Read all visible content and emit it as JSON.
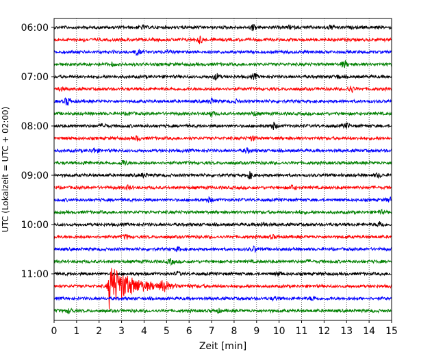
{
  "chart_data": {
    "type": "line",
    "title": "",
    "xlabel": "Zeit  [min]",
    "ylabel": "UTC (Lokalzeit = UTC + 02:00)",
    "xlim": [
      0,
      15
    ],
    "x_ticks": [
      "0",
      "1",
      "2",
      "3",
      "4",
      "5",
      "6",
      "7",
      "8",
      "9",
      "10",
      "11",
      "12",
      "13",
      "14",
      "15"
    ],
    "y_tick_labels": [
      "06:00",
      "07:00",
      "08:00",
      "09:00",
      "10:00",
      "11:00"
    ],
    "grid": "vertical dotted",
    "trace_minutes": 15,
    "trace_colors": [
      "#000000",
      "#ff0000",
      "#0000ff",
      "#008000"
    ],
    "traces": [
      {
        "start": "06:00",
        "color": "#000000",
        "events": [
          {
            "t": 3.9,
            "amp": 0.2
          },
          {
            "t": 8.85,
            "amp": 0.4
          },
          {
            "t": 10.5,
            "amp": 0.2
          },
          {
            "t": 12.3,
            "amp": 0.3
          }
        ]
      },
      {
        "start": "06:15",
        "color": "#ff0000",
        "events": [
          {
            "t": 1.3,
            "amp": 0.15
          },
          {
            "t": 6.5,
            "amp": 0.5
          }
        ]
      },
      {
        "start": "06:30",
        "color": "#0000ff",
        "events": [
          {
            "t": 3.7,
            "amp": 0.35
          },
          {
            "t": 5.1,
            "amp": 0.15
          }
        ]
      },
      {
        "start": "06:45",
        "color": "#008000",
        "events": [
          {
            "t": 12.9,
            "amp": 0.45
          },
          {
            "t": 2.6,
            "amp": 0.15
          }
        ]
      },
      {
        "start": "07:00",
        "color": "#000000",
        "events": [
          {
            "t": 7.2,
            "amp": 0.4
          },
          {
            "t": 8.9,
            "amp": 0.35
          },
          {
            "t": 12.6,
            "amp": 0.2
          }
        ]
      },
      {
        "start": "07:15",
        "color": "#ff0000",
        "events": [
          {
            "t": 0.3,
            "amp": 0.2
          },
          {
            "t": 13.2,
            "amp": 0.45
          }
        ]
      },
      {
        "start": "07:30",
        "color": "#0000ff",
        "events": [
          {
            "t": 0.6,
            "amp": 0.6
          },
          {
            "t": 7.0,
            "amp": 0.35
          },
          {
            "t": 8.1,
            "amp": 0.2
          }
        ]
      },
      {
        "start": "07:45",
        "color": "#008000",
        "events": [
          {
            "t": 7.0,
            "amp": 0.35
          },
          {
            "t": 3.4,
            "amp": 0.15
          },
          {
            "t": 8.9,
            "amp": 0.25
          }
        ]
      },
      {
        "start": "08:00",
        "color": "#000000",
        "events": [
          {
            "t": 9.75,
            "amp": 0.5
          },
          {
            "t": 13.0,
            "amp": 0.3
          },
          {
            "t": 2.2,
            "amp": 0.25
          }
        ]
      },
      {
        "start": "08:15",
        "color": "#ff0000",
        "events": [
          {
            "t": 3.7,
            "amp": 0.3
          },
          {
            "t": 8.8,
            "amp": 0.3
          }
        ]
      },
      {
        "start": "08:30",
        "color": "#0000ff",
        "events": [
          {
            "t": 1.8,
            "amp": 0.35
          },
          {
            "t": 8.6,
            "amp": 0.3
          }
        ]
      },
      {
        "start": "08:45",
        "color": "#008000",
        "events": [
          {
            "t": 3.1,
            "amp": 0.35
          },
          {
            "t": 1.4,
            "amp": 0.15
          }
        ]
      },
      {
        "start": "09:00",
        "color": "#000000",
        "events": [
          {
            "t": 8.7,
            "amp": 0.45
          },
          {
            "t": 4.0,
            "amp": 0.25
          },
          {
            "t": 14.4,
            "amp": 0.25
          }
        ]
      },
      {
        "start": "09:15",
        "color": "#ff0000",
        "events": [
          {
            "t": 3.3,
            "amp": 0.25
          },
          {
            "t": 10.6,
            "amp": 0.3
          }
        ]
      },
      {
        "start": "09:30",
        "color": "#0000ff",
        "events": [
          {
            "t": 6.9,
            "amp": 0.3
          },
          {
            "t": 14.9,
            "amp": 0.3
          }
        ]
      },
      {
        "start": "09:45",
        "color": "#008000",
        "events": [
          {
            "t": 14.5,
            "amp": 0.25
          },
          {
            "t": 11.0,
            "amp": 0.15
          }
        ]
      },
      {
        "start": "10:00",
        "color": "#000000",
        "events": [
          {
            "t": 14.5,
            "amp": 0.45
          },
          {
            "t": 9.3,
            "amp": 0.3
          }
        ]
      },
      {
        "start": "10:15",
        "color": "#ff0000",
        "events": [
          {
            "t": 3.2,
            "amp": 0.25
          },
          {
            "t": 9.7,
            "amp": 0.2
          }
        ]
      },
      {
        "start": "10:30",
        "color": "#0000ff",
        "events": [
          {
            "t": 8.9,
            "amp": 0.35
          },
          {
            "t": 5.5,
            "amp": 0.25
          }
        ]
      },
      {
        "start": "10:45",
        "color": "#008000",
        "events": [
          {
            "t": 5.2,
            "amp": 0.35
          },
          {
            "t": 11.3,
            "amp": 0.15
          }
        ]
      },
      {
        "start": "11:00",
        "color": "#000000",
        "events": [
          {
            "t": 10.0,
            "amp": 0.25
          },
          {
            "t": 5.5,
            "amp": 0.2
          }
        ]
      },
      {
        "start": "11:15",
        "color": "#ff0000",
        "events": [
          {
            "t": 2.45,
            "amp": 3.6
          },
          {
            "t": 4.9,
            "amp": 0.9
          }
        ]
      },
      {
        "start": "11:30",
        "color": "#0000ff",
        "events": [
          {
            "t": 11.5,
            "amp": 0.25
          },
          {
            "t": 9.8,
            "amp": 0.2
          }
        ]
      },
      {
        "start": "11:45",
        "color": "#008000",
        "events": [
          {
            "t": 0.7,
            "amp": 0.3
          },
          {
            "t": 7.3,
            "amp": 0.2
          }
        ]
      }
    ]
  }
}
